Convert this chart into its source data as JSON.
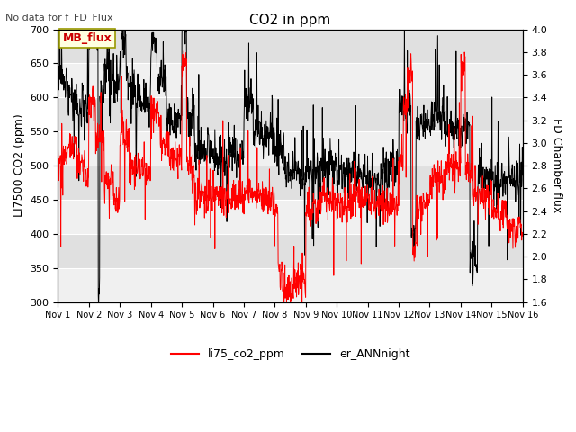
{
  "title": "CO2 in ppm",
  "top_left_text": "No data for f_FD_Flux",
  "annotation_box": "MB_flux",
  "ylabel_left": "LI7500 CO2 (ppm)",
  "ylabel_right": "FD Chamber flux",
  "ylim_left": [
    300,
    700
  ],
  "ylim_right": [
    1.6,
    4.0
  ],
  "xtick_labels": [
    "Nov 1",
    "Nov 2",
    "Nov 3",
    "Nov 4",
    "Nov 5",
    "Nov 6",
    "Nov 7",
    "Nov 8",
    "Nov 9",
    "Nov 10",
    "Nov 11",
    "Nov 12",
    "Nov 13",
    "Nov 14",
    "Nov 15",
    "Nov 16"
  ],
  "bg_color_dark": "#d8d8d8",
  "bg_color_light": "#eeeeee",
  "legend_red_label": "li75_co2_ppm",
  "legend_black_label": "er_ANNnight",
  "red_color": "#ff0000",
  "black_color": "#000000",
  "linewidth": 0.7
}
